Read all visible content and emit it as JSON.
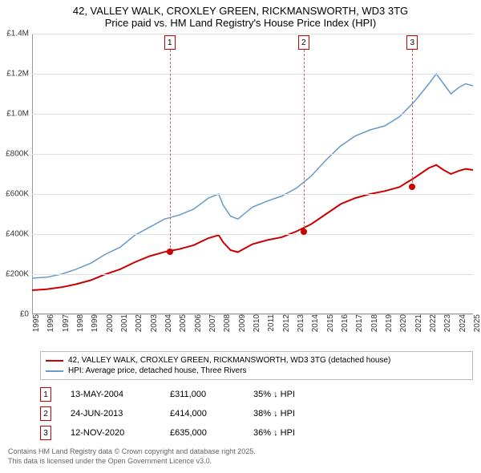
{
  "title": {
    "line1": "42, VALLEY WALK, CROXLEY GREEN, RICKMANSWORTH, WD3 3TG",
    "line2": "Price paid vs. HM Land Registry's House Price Index (HPI)"
  },
  "chart": {
    "type": "line",
    "background_color": "#ffffff",
    "grid_color": "#e0e0e0",
    "axis_color": "#999999",
    "y_axis": {
      "min": 0,
      "max": 1400000,
      "ticks": [
        0,
        200000,
        400000,
        600000,
        800000,
        1000000,
        1200000,
        1400000
      ],
      "labels": [
        "£0",
        "£200K",
        "£400K",
        "£600K",
        "£800K",
        "£1.0M",
        "£1.2M",
        "£1.4M"
      ],
      "label_fontsize": 10
    },
    "x_axis": {
      "min": 1995,
      "max": 2025,
      "ticks": [
        1995,
        1996,
        1997,
        1998,
        1999,
        2000,
        2001,
        2002,
        2003,
        2004,
        2005,
        2006,
        2007,
        2008,
        2009,
        2010,
        2011,
        2012,
        2013,
        2014,
        2015,
        2016,
        2017,
        2018,
        2019,
        2020,
        2021,
        2022,
        2023,
        2024,
        2025
      ],
      "label_fontsize": 10,
      "label_rotation": -90
    },
    "series": [
      {
        "name": "price_paid",
        "label": "42, VALLEY WALK, CROXLEY GREEN, RICKMANSWORTH, WD3 3TG (detached house)",
        "color": "#cc0000",
        "line_width": 2,
        "points": [
          [
            1995,
            120000
          ],
          [
            1996,
            125000
          ],
          [
            1997,
            135000
          ],
          [
            1998,
            150000
          ],
          [
            1999,
            170000
          ],
          [
            2000,
            200000
          ],
          [
            2001,
            225000
          ],
          [
            2002,
            260000
          ],
          [
            2003,
            290000
          ],
          [
            2004,
            311000
          ],
          [
            2004.5,
            318000
          ],
          [
            2005,
            325000
          ],
          [
            2006,
            345000
          ],
          [
            2007,
            380000
          ],
          [
            2007.7,
            395000
          ],
          [
            2008,
            360000
          ],
          [
            2008.5,
            320000
          ],
          [
            2009,
            310000
          ],
          [
            2009.5,
            330000
          ],
          [
            2010,
            350000
          ],
          [
            2011,
            370000
          ],
          [
            2012,
            385000
          ],
          [
            2013,
            414000
          ],
          [
            2014,
            450000
          ],
          [
            2015,
            500000
          ],
          [
            2016,
            550000
          ],
          [
            2017,
            580000
          ],
          [
            2018,
            600000
          ],
          [
            2019,
            615000
          ],
          [
            2020,
            635000
          ],
          [
            2021,
            680000
          ],
          [
            2022,
            730000
          ],
          [
            2022.5,
            745000
          ],
          [
            2023,
            720000
          ],
          [
            2023.5,
            700000
          ],
          [
            2024,
            715000
          ],
          [
            2024.5,
            725000
          ],
          [
            2025,
            720000
          ]
        ]
      },
      {
        "name": "hpi",
        "label": "HPI: Average price, detached house, Three Rivers",
        "color": "#6699cc",
        "line_width": 1.5,
        "points": [
          [
            1995,
            180000
          ],
          [
            1996,
            185000
          ],
          [
            1997,
            200000
          ],
          [
            1998,
            225000
          ],
          [
            1999,
            255000
          ],
          [
            2000,
            300000
          ],
          [
            2001,
            335000
          ],
          [
            2002,
            395000
          ],
          [
            2003,
            435000
          ],
          [
            2004,
            475000
          ],
          [
            2005,
            495000
          ],
          [
            2006,
            525000
          ],
          [
            2007,
            580000
          ],
          [
            2007.7,
            600000
          ],
          [
            2008,
            545000
          ],
          [
            2008.5,
            490000
          ],
          [
            2009,
            475000
          ],
          [
            2009.5,
            505000
          ],
          [
            2010,
            535000
          ],
          [
            2011,
            565000
          ],
          [
            2012,
            590000
          ],
          [
            2013,
            630000
          ],
          [
            2014,
            690000
          ],
          [
            2015,
            770000
          ],
          [
            2016,
            840000
          ],
          [
            2017,
            890000
          ],
          [
            2018,
            920000
          ],
          [
            2019,
            940000
          ],
          [
            2020,
            985000
          ],
          [
            2021,
            1060000
          ],
          [
            2022,
            1150000
          ],
          [
            2022.5,
            1200000
          ],
          [
            2023,
            1150000
          ],
          [
            2023.5,
            1100000
          ],
          [
            2024,
            1130000
          ],
          [
            2024.5,
            1150000
          ],
          [
            2025,
            1140000
          ]
        ]
      }
    ],
    "markers": [
      {
        "id": "1",
        "x": 2004.37,
        "y": 311000,
        "box_color": "#cc0000"
      },
      {
        "id": "2",
        "x": 2013.48,
        "y": 414000,
        "box_color": "#cc0000"
      },
      {
        "id": "3",
        "x": 2020.87,
        "y": 635000,
        "box_color": "#cc0000"
      }
    ],
    "marker_dot_color": "#cc0000",
    "marker_dash_color": "#cc6666"
  },
  "legend": {
    "items": [
      {
        "color": "#cc0000",
        "label": "42, VALLEY WALK, CROXLEY GREEN, RICKMANSWORTH, WD3 3TG (detached house)"
      },
      {
        "color": "#6699cc",
        "label": "HPI: Average price, detached house, Three Rivers"
      }
    ]
  },
  "sales": [
    {
      "id": "1",
      "date": "13-MAY-2004",
      "price": "£311,000",
      "diff": "35% ↓ HPI",
      "box_color": "#cc0000"
    },
    {
      "id": "2",
      "date": "24-JUN-2013",
      "price": "£414,000",
      "diff": "38% ↓ HPI",
      "box_color": "#cc0000"
    },
    {
      "id": "3",
      "date": "12-NOV-2020",
      "price": "£635,000",
      "diff": "36% ↓ HPI",
      "box_color": "#cc0000"
    }
  ],
  "footer": {
    "line1": "Contains HM Land Registry data © Crown copyright and database right 2025.",
    "line2": "This data is licensed under the Open Government Licence v3.0."
  }
}
